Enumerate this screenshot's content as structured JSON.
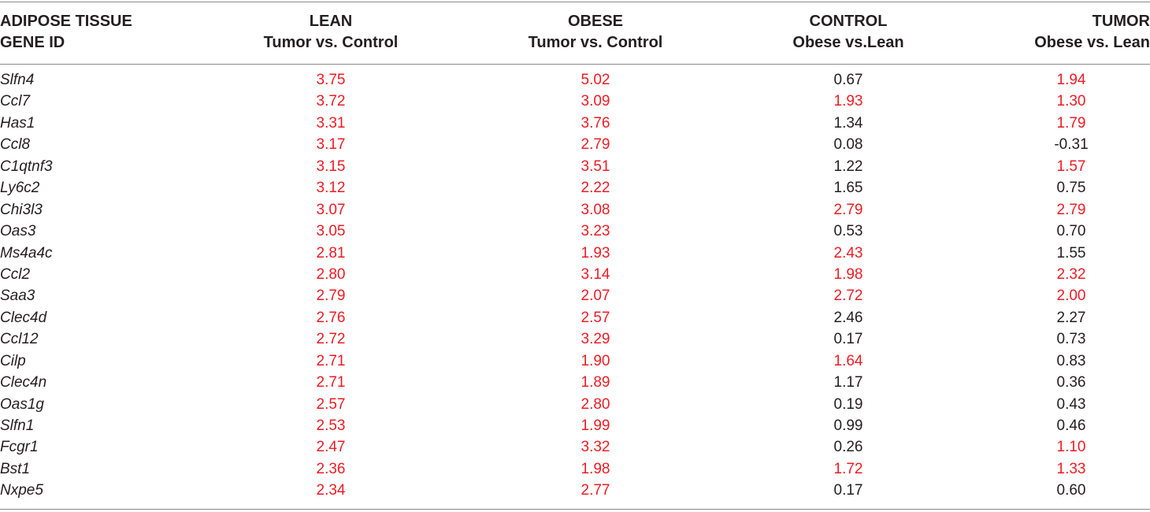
{
  "colors": {
    "highlight": "#ee1c24",
    "text": "#231f20",
    "rule": "#8a8a8a"
  },
  "headers": [
    {
      "line1": "ADIPOSE TISSUE",
      "line2": "GENE ID"
    },
    {
      "line1": "LEAN",
      "line2": "Tumor vs. Control"
    },
    {
      "line1": "OBESE",
      "line2": "Tumor vs. Control"
    },
    {
      "line1": "CONTROL",
      "line2": "Obese vs.Lean"
    },
    {
      "line1": "TUMOR",
      "line2": "Obese vs. Lean"
    }
  ],
  "rows": [
    {
      "gene": "Slfn4",
      "values": [
        "3.75",
        "5.02",
        "0.67",
        "1.94"
      ],
      "red": [
        true,
        true,
        false,
        true
      ]
    },
    {
      "gene": "Ccl7",
      "values": [
        "3.72",
        "3.09",
        "1.93",
        "1.30"
      ],
      "red": [
        true,
        true,
        true,
        true
      ]
    },
    {
      "gene": "Has1",
      "values": [
        "3.31",
        "3.76",
        "1.34",
        "1.79"
      ],
      "red": [
        true,
        true,
        false,
        true
      ]
    },
    {
      "gene": "Ccl8",
      "values": [
        "3.17",
        "2.79",
        "0.08",
        "-0.31"
      ],
      "red": [
        true,
        true,
        false,
        false
      ]
    },
    {
      "gene": "C1qtnf3",
      "values": [
        "3.15",
        "3.51",
        "1.22",
        "1.57"
      ],
      "red": [
        true,
        true,
        false,
        true
      ]
    },
    {
      "gene": "Ly6c2",
      "values": [
        "3.12",
        "2.22",
        "1.65",
        "0.75"
      ],
      "red": [
        true,
        true,
        false,
        false
      ]
    },
    {
      "gene": "Chi3l3",
      "values": [
        "3.07",
        "3.08",
        "2.79",
        "2.79"
      ],
      "red": [
        true,
        true,
        true,
        true
      ]
    },
    {
      "gene": "Oas3",
      "values": [
        "3.05",
        "3.23",
        "0.53",
        "0.70"
      ],
      "red": [
        true,
        true,
        false,
        false
      ]
    },
    {
      "gene": "Ms4a4c",
      "values": [
        "2.81",
        "1.93",
        "2.43",
        "1.55"
      ],
      "red": [
        true,
        true,
        true,
        false
      ]
    },
    {
      "gene": "Ccl2",
      "values": [
        "2.80",
        "3.14",
        "1.98",
        "2.32"
      ],
      "red": [
        true,
        true,
        true,
        true
      ]
    },
    {
      "gene": "Saa3",
      "values": [
        "2.79",
        "2.07",
        "2.72",
        "2.00"
      ],
      "red": [
        true,
        true,
        true,
        true
      ]
    },
    {
      "gene": "Clec4d",
      "values": [
        "2.76",
        "2.57",
        "2.46",
        "2.27"
      ],
      "red": [
        true,
        true,
        false,
        false
      ]
    },
    {
      "gene": "Ccl12",
      "values": [
        "2.72",
        "3.29",
        "0.17",
        "0.73"
      ],
      "red": [
        true,
        true,
        false,
        false
      ]
    },
    {
      "gene": "Cilp",
      "values": [
        "2.71",
        "1.90",
        "1.64",
        "0.83"
      ],
      "red": [
        true,
        true,
        true,
        false
      ]
    },
    {
      "gene": "Clec4n",
      "values": [
        "2.71",
        "1.89",
        "1.17",
        "0.36"
      ],
      "red": [
        true,
        true,
        false,
        false
      ]
    },
    {
      "gene": "Oas1g",
      "values": [
        "2.57",
        "2.80",
        "0.19",
        "0.43"
      ],
      "red": [
        true,
        true,
        false,
        false
      ]
    },
    {
      "gene": "Slfn1",
      "values": [
        "2.53",
        "1.99",
        "0.99",
        "0.46"
      ],
      "red": [
        true,
        true,
        false,
        false
      ]
    },
    {
      "gene": "Fcgr1",
      "values": [
        "2.47",
        "3.32",
        "0.26",
        "1.10"
      ],
      "red": [
        true,
        true,
        false,
        true
      ]
    },
    {
      "gene": "Bst1",
      "values": [
        "2.36",
        "1.98",
        "1.72",
        "1.33"
      ],
      "red": [
        true,
        true,
        true,
        true
      ]
    },
    {
      "gene": "Nxpe5",
      "values": [
        "2.34",
        "2.77",
        "0.17",
        "0.60"
      ],
      "red": [
        true,
        true,
        false,
        false
      ]
    }
  ]
}
